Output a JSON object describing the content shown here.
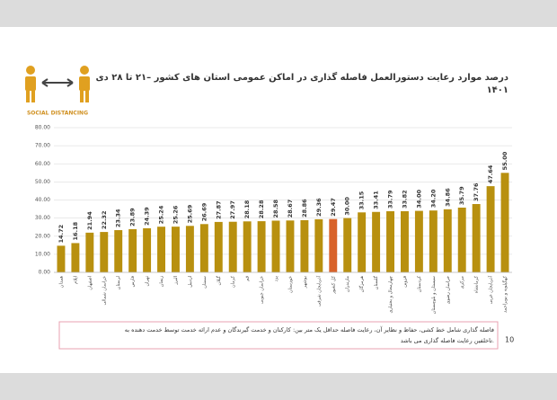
{
  "logo_text": "SOCIAL DISTANCING",
  "chart_data": {
    "type": "bar",
    "title": [
      "درصد موارد رعایت دستورالعمل فاصله گذاری در اماکن عمومی استان های کشور –۲۱ تا ۲۸ دی",
      "۱۴۰۱"
    ],
    "categories": [
      "همدان",
      "ایلام",
      "اصفهان",
      "خراسان شمالی",
      "لرستان",
      "فارس",
      "تهران",
      "زنجان",
      "البرز",
      "اردبیل",
      "سمنان",
      "گیلان",
      "کرمان",
      "قم",
      "خراسان جنوبی",
      "یزد",
      "خوزستان",
      "بوشهر",
      "آذربایجان شرقی",
      "کل کشور",
      "مازندران",
      "هرمزگان",
      "گلستان",
      "چهارمحال و بختیاری",
      "قزوین",
      "کردستان",
      "سیستان و بلوچستان",
      "خراسان رضوی",
      "مرکزی",
      "کرمانشاه",
      "آذربایجان غربی",
      "کهگیلویه و بویراحمد"
    ],
    "values": [
      14.72,
      16.18,
      21.94,
      22.32,
      23.34,
      23.89,
      24.39,
      25.24,
      25.26,
      25.69,
      26.69,
      27.87,
      27.97,
      28.18,
      28.28,
      28.58,
      28.67,
      28.86,
      29.36,
      29.47,
      30.0,
      33.15,
      33.41,
      33.79,
      33.82,
      34.0,
      34.2,
      34.86,
      35.79,
      37.76,
      47.64,
      55.0
    ],
    "value_labels": [
      "14.72",
      "16.18",
      "21.94",
      "22.32",
      "23.34",
      "23.89",
      "24.39",
      "25.24",
      "25.26",
      "25.69",
      "26.69",
      "27.87",
      "27.97",
      "28.18",
      "28.28",
      "28.58",
      "28.67",
      "28.86",
      "29.36",
      "29.47",
      "30.00",
      "33.15",
      "33.41",
      "33.79",
      "33.82",
      "34.00",
      "34.20",
      "34.86",
      "35.79",
      "37.76",
      "47.64",
      "55.00"
    ],
    "colors": [
      "#b8900f",
      "#b8900f",
      "#b8900f",
      "#b8900f",
      "#b8900f",
      "#b8900f",
      "#b8900f",
      "#b8900f",
      "#b8900f",
      "#b8900f",
      "#b8900f",
      "#b8900f",
      "#b8900f",
      "#b8900f",
      "#b8900f",
      "#b8900f",
      "#b8900f",
      "#b8900f",
      "#b8900f",
      "#d8622a",
      "#b8900f",
      "#b8900f",
      "#b8900f",
      "#b8900f",
      "#b8900f",
      "#b8900f",
      "#b8900f",
      "#b8900f",
      "#b8900f",
      "#b8900f",
      "#b8900f",
      "#b8900f"
    ],
    "ylim": [
      0,
      80
    ],
    "yticks": [
      {
        "value": 0,
        "label": "0.00"
      },
      {
        "value": 10,
        "label": "10.00"
      },
      {
        "value": 20,
        "label": "20.00"
      },
      {
        "value": 30,
        "label": "30.00"
      },
      {
        "value": 40,
        "label": "40.00"
      },
      {
        "value": 50,
        "label": "50.00"
      },
      {
        "value": 60,
        "label": "60.00"
      },
      {
        "value": 70,
        "label": "70.00"
      },
      {
        "value": 80,
        "label": "80.00"
      }
    ],
    "grid": true,
    "note": [
      "فاصله گذاری شامل خط کشی، حفاظ و نظایر آن، رعایت فاصله حداقل یک متر بین: کارکنان و خدمت گیرندگان و عدم ارائه خدمت توسط خدمت دهنده به",
      "تاخلفین رعایت فاصله گذاری می باشد."
    ],
    "page_number": "10"
  }
}
